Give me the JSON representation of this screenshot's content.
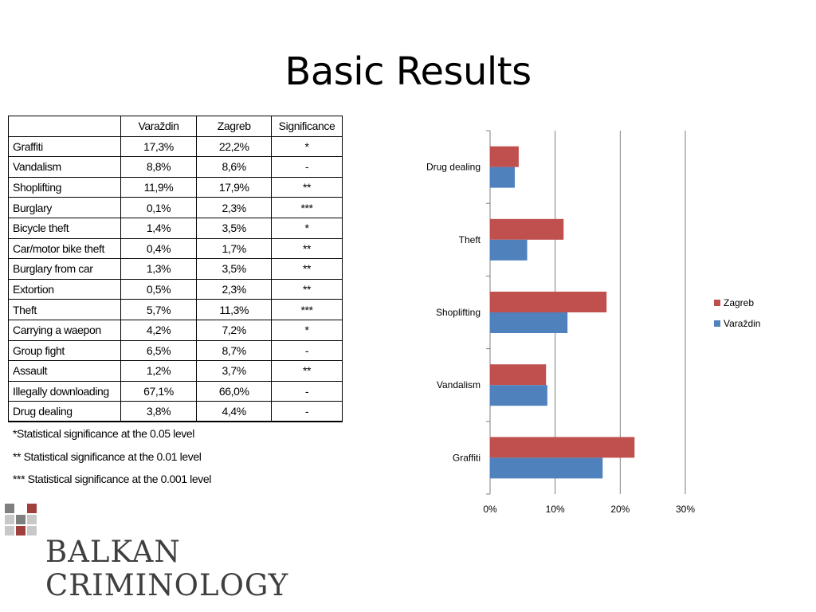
{
  "title": "Basic Results",
  "table": {
    "headers": [
      "",
      "Varaždin",
      "Zagreb",
      "Significance"
    ],
    "rows": [
      [
        "Graffiti",
        "17,3%",
        "22,2%",
        "*"
      ],
      [
        "Vandalism",
        "8,8%",
        "8,6%",
        "-"
      ],
      [
        "Shoplifting",
        "11,9%",
        "17,9%",
        "**"
      ],
      [
        "Burglary",
        "0,1%",
        "2,3%",
        "***"
      ],
      [
        "Bicycle theft",
        "1,4%",
        "3,5%",
        "*"
      ],
      [
        "Car/motor bike theft",
        "0,4%",
        "1,7%",
        "**"
      ],
      [
        "Burglary from car",
        "1,3%",
        "3,5%",
        "**"
      ],
      [
        "Extortion",
        "0,5%",
        "2,3%",
        "**"
      ],
      [
        "Theft",
        "5,7%",
        "11,3%",
        "***"
      ],
      [
        "Carrying a waepon",
        "4,2%",
        "7,2%",
        "*"
      ],
      [
        "Group fight",
        "6,5%",
        "8,7%",
        "-"
      ],
      [
        "Assault",
        "1,2%",
        "3,7%",
        "**"
      ],
      [
        "Illegally downloading",
        "67,1%",
        "66,0%",
        "-"
      ],
      [
        "Drug dealing",
        "3,8%",
        "4,4%",
        "-"
      ]
    ]
  },
  "notes": [
    "*Statistical significance at the 0.05 level",
    "** Statistical significance at the 0.01 level",
    "*** Statistical significance at the 0.001 level"
  ],
  "chart_data": {
    "type": "bar",
    "orientation": "horizontal",
    "categories": [
      "Drug dealing",
      "Theft",
      "Shoplifting",
      "Vandalism",
      "Graffiti"
    ],
    "series": [
      {
        "name": "Zagreb",
        "color": "#C0504D",
        "values": [
          4.4,
          11.3,
          17.9,
          8.6,
          22.2
        ]
      },
      {
        "name": "Varaždin",
        "color": "#4F81BD",
        "values": [
          3.8,
          5.7,
          11.9,
          8.8,
          17.3
        ]
      }
    ],
    "xlim": [
      0,
      30
    ],
    "xticks": [
      0,
      10,
      20,
      30
    ],
    "xtick_labels": [
      "0%",
      "10%",
      "20%",
      "30%"
    ],
    "grid": true,
    "legend": "right"
  },
  "logo": {
    "line1": "BALKAN",
    "line2": "CRIMINOLOGY",
    "colors": {
      "gray": "#7f7f7f",
      "red": "#a0403c",
      "light": "#c8c8c8"
    }
  }
}
